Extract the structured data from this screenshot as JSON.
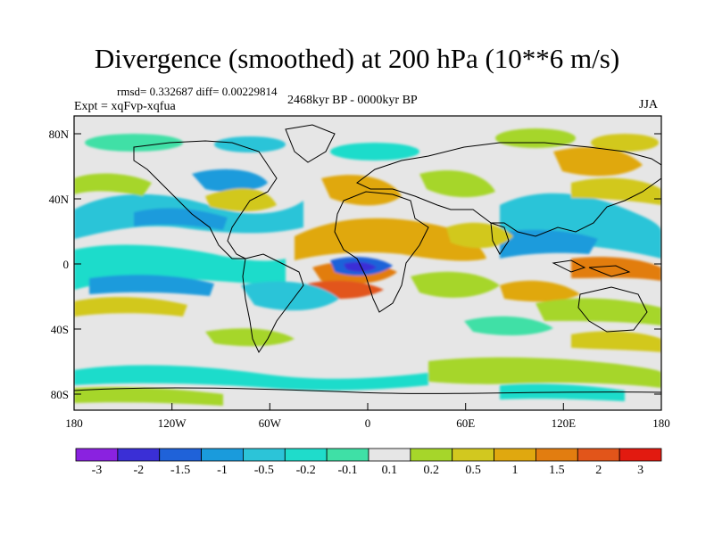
{
  "title": "Divergence (smoothed) at 200 hPa (10**6 m/s)",
  "stats": "rmsd= 0.332687 diff= 0.00229814",
  "experiment": "Expt = xqFvp-xqfua",
  "period": "2468kyr BP - 0000kyr BP",
  "season": "JJA",
  "y_axis_ticks": [
    "80N",
    "40N",
    "0",
    "40S",
    "80S"
  ],
  "x_axis_ticks": [
    "180",
    "120W",
    "60W",
    "0",
    "60E",
    "120E",
    "180"
  ],
  "colorbar": {
    "labels": [
      "-3",
      "-2",
      "-1.5",
      "-1",
      "-0.5",
      "-0.2",
      "-0.1",
      "0.1",
      "0.2",
      "0.5",
      "1",
      "1.5",
      "2",
      "3"
    ],
    "colors": [
      "#8a22e0",
      "#3a2fd6",
      "#1f62d9",
      "#1a9bdc",
      "#2cc4d8",
      "#1fdccb",
      "#3fe0a6",
      "#e6e6e6",
      "#a6d62a",
      "#d2c81f",
      "#e0a80f",
      "#e27d10",
      "#e2551a",
      "#e21a10"
    ]
  },
  "colors": {
    "ocean_neutral": "#e6e6e6",
    "coast": "#000000"
  }
}
